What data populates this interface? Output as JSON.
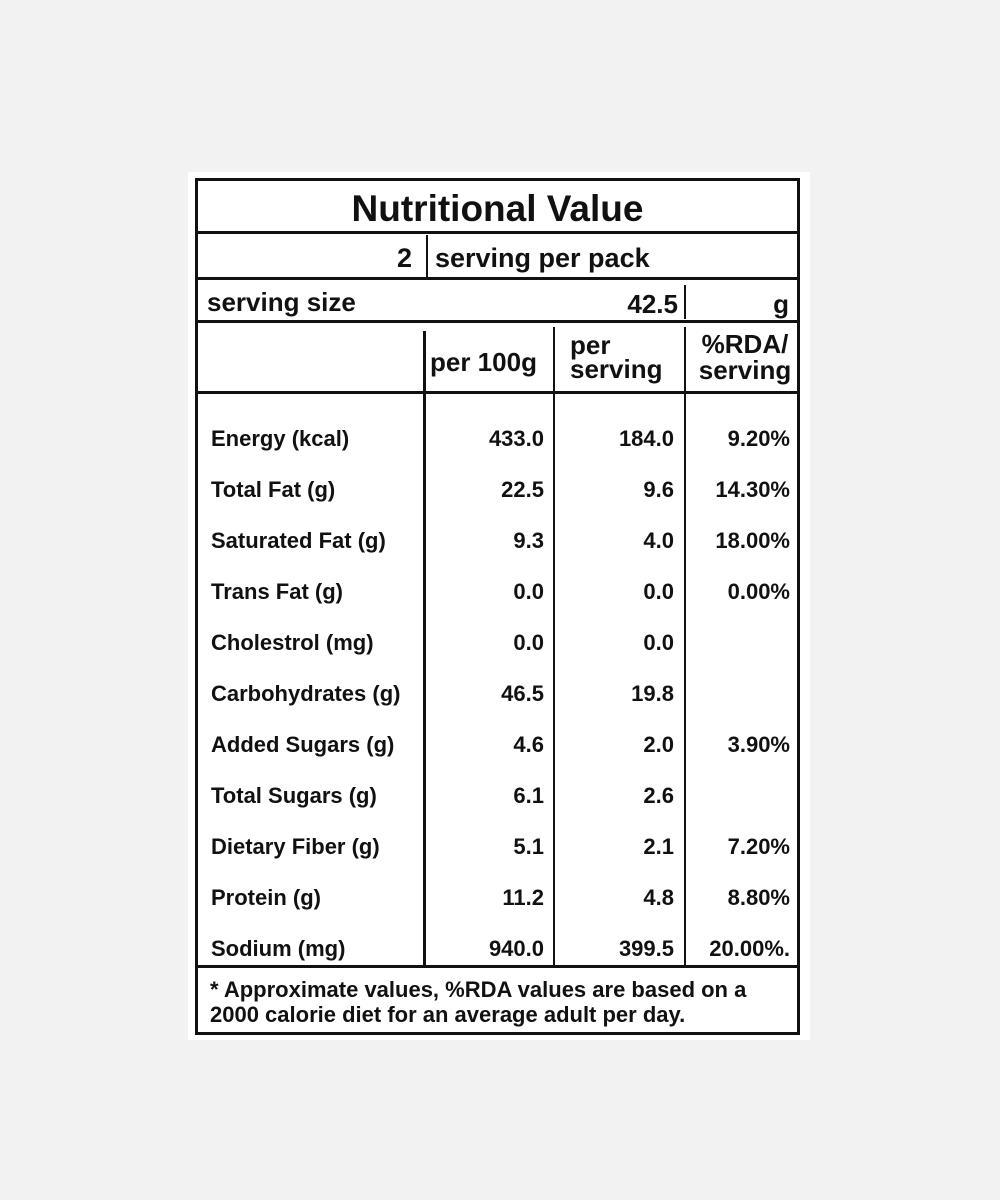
{
  "title": "Nutritional Value",
  "servings": {
    "count": "2",
    "text": "serving per pack"
  },
  "serving_size": {
    "label": "serving size",
    "value": "42.5",
    "unit": "g"
  },
  "headers": {
    "per_100g": "per 100g",
    "per_serving_line1": "per",
    "per_serving_line2": "serving",
    "rda_line1": "%RDA/",
    "rda_line2": "serving"
  },
  "rows": [
    {
      "name": "Energy (kcal)",
      "per_100g": "433.0",
      "per_serving": "184.0",
      "rda": "9.20%"
    },
    {
      "name": "Total Fat (g)",
      "per_100g": "22.5",
      "per_serving": "9.6",
      "rda": "14.30%"
    },
    {
      "name": "Saturated Fat (g)",
      "per_100g": "9.3",
      "per_serving": "4.0",
      "rda": "18.00%"
    },
    {
      "name": "Trans Fat (g)",
      "per_100g": "0.0",
      "per_serving": "0.0",
      "rda": "0.00%"
    },
    {
      "name": "Cholestrol (mg)",
      "per_100g": "0.0",
      "per_serving": "0.0",
      "rda": ""
    },
    {
      "name": "Carbohydrates (g)",
      "per_100g": "46.5",
      "per_serving": "19.8",
      "rda": ""
    },
    {
      "name": "Added Sugars (g)",
      "per_100g": "4.6",
      "per_serving": "2.0",
      "rda": "3.90%"
    },
    {
      "name": "Total Sugars (g)",
      "per_100g": "6.1",
      "per_serving": "2.6",
      "rda": ""
    },
    {
      "name": "Dietary Fiber (g)",
      "per_100g": "5.1",
      "per_serving": "2.1",
      "rda": "7.20%"
    },
    {
      "name": "Protein (g)",
      "per_100g": "11.2",
      "per_serving": "4.8",
      "rda": "8.80%"
    },
    {
      "name": "Sodium (mg)",
      "per_100g": "940.0",
      "per_serving": "399.5",
      "rda": "20.00%."
    }
  ],
  "footnote": "* Approximate values, %RDA values are based on a 2000 calorie diet for an average adult per day."
}
